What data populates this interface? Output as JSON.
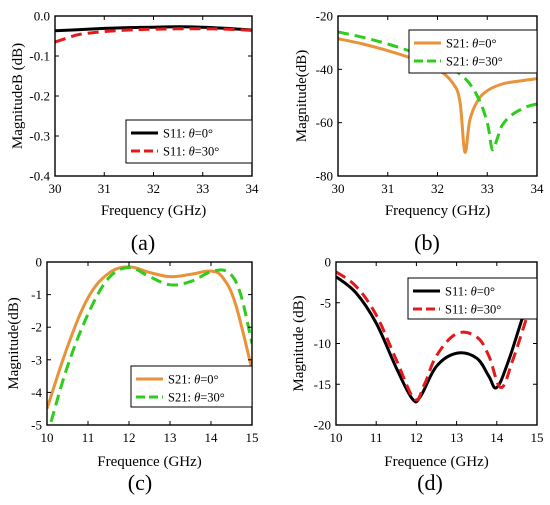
{
  "colors": {
    "black": "#000000",
    "red": "#e31a1c",
    "orange": "#e8923a",
    "green": "#2ecc1b"
  },
  "chart_data": [
    {
      "panel": "(a)",
      "type": "line",
      "xlabel": "Frequency (GHz)",
      "ylabel": "MagnitudeB (dB)",
      "xlim": [
        30,
        34
      ],
      "ylim": [
        -0.4,
        0.0
      ],
      "xticks": [
        "30",
        "31",
        "32",
        "33",
        "34"
      ],
      "yticks": [
        "0.0",
        "-0.1",
        "-0.2",
        "-0.3",
        "-0.4"
      ],
      "legend_position": "bottom-right",
      "series": [
        {
          "name_parts": [
            "S11: ",
            "θ",
            "=0°"
          ],
          "color": "black",
          "dash": "solid",
          "x": [
            30,
            30.5,
            31,
            31.5,
            32,
            32.5,
            33,
            33.5,
            34
          ],
          "y": [
            -0.037,
            -0.034,
            -0.031,
            -0.029,
            -0.028,
            -0.027,
            -0.028,
            -0.031,
            -0.035
          ]
        },
        {
          "name_parts": [
            "S11: ",
            "θ",
            "=30°"
          ],
          "color": "red",
          "dash": "dashed",
          "x": [
            30,
            30.25,
            30.5,
            31,
            31.5,
            32,
            32.5,
            33,
            33.5,
            34
          ],
          "y": [
            -0.065,
            -0.055,
            -0.046,
            -0.039,
            -0.035,
            -0.033,
            -0.032,
            -0.032,
            -0.033,
            -0.036
          ]
        }
      ]
    },
    {
      "panel": "(b)",
      "type": "line",
      "xlabel": "Frequency (GHz)",
      "ylabel": "Magnitude(dB)",
      "xlim": [
        30,
        34
      ],
      "ylim": [
        -80,
        -20
      ],
      "xticks": [
        "30",
        "31",
        "32",
        "33",
        "34"
      ],
      "yticks": [
        "-20",
        "-40",
        "-60",
        "-80"
      ],
      "legend_position": "top-right",
      "series": [
        {
          "name_parts": [
            "S21: ",
            "θ",
            "=0°"
          ],
          "color": "orange",
          "dash": "solid",
          "x": [
            30,
            30.5,
            31,
            31.5,
            32,
            32.3,
            32.45,
            32.55,
            32.65,
            32.8,
            33,
            33.3,
            33.6,
            34
          ],
          "y": [
            -28.5,
            -30.5,
            -33,
            -36,
            -40,
            -45,
            -52,
            -71,
            -59,
            -52,
            -48,
            -45.5,
            -44.5,
            -43.5
          ]
        },
        {
          "name_parts": [
            "S21: ",
            "θ",
            "=30°"
          ],
          "color": "green",
          "dash": "dashed",
          "x": [
            30,
            30.5,
            31,
            31.5,
            32,
            32.5,
            32.8,
            33,
            33.1,
            33.2,
            33.3,
            33.5,
            33.8,
            34
          ],
          "y": [
            -26,
            -28,
            -30.5,
            -33.5,
            -37,
            -42.5,
            -50,
            -60,
            -70,
            -66,
            -61,
            -57,
            -54,
            -53
          ]
        }
      ]
    },
    {
      "panel": "(c)",
      "type": "line",
      "xlabel": "Frequence (GHz)",
      "ylabel": "Magnitude(dB)",
      "xlim": [
        10,
        15
      ],
      "ylim": [
        -5,
        0
      ],
      "xticks": [
        "10",
        "11",
        "12",
        "13",
        "14",
        "15"
      ],
      "yticks": [
        "0",
        "-1",
        "-2",
        "-3",
        "-4",
        "-5"
      ],
      "legend_position": "bottom-right",
      "series": [
        {
          "name_parts": [
            "S21: ",
            "θ",
            "=0°"
          ],
          "color": "orange",
          "dash": "solid",
          "x": [
            10,
            10.5,
            11,
            11.5,
            12,
            12.5,
            13,
            13.5,
            14,
            14.3,
            14.6,
            15
          ],
          "y": [
            -4.5,
            -2.6,
            -1.1,
            -0.35,
            -0.15,
            -0.32,
            -0.45,
            -0.38,
            -0.28,
            -0.5,
            -1.3,
            -3.3
          ]
        },
        {
          "name_parts": [
            "S21: ",
            "θ",
            "=30°"
          ],
          "color": "green",
          "dash": "dashed",
          "x": [
            10.1,
            10.5,
            11,
            11.5,
            12,
            12.5,
            13,
            13.5,
            14,
            14.4,
            14.7,
            15
          ],
          "y": [
            -4.9,
            -3.2,
            -1.6,
            -0.5,
            -0.17,
            -0.45,
            -0.7,
            -0.6,
            -0.3,
            -0.3,
            -0.9,
            -2.5
          ]
        }
      ]
    },
    {
      "panel": "(d)",
      "type": "line",
      "xlabel": "Frequence (GHz)",
      "ylabel": "Magnitude (dB)",
      "xlim": [
        10,
        15
      ],
      "ylim": [
        -20,
        0
      ],
      "xticks": [
        "10",
        "11",
        "12",
        "13",
        "14",
        "15"
      ],
      "yticks": [
        "0",
        "-5",
        "-10",
        "-15",
        "-20"
      ],
      "legend_position": "top-right",
      "series": [
        {
          "name_parts": [
            "S11: ",
            "θ",
            "=0°"
          ],
          "color": "black",
          "dash": "solid",
          "x": [
            10,
            10.5,
            11,
            11.5,
            11.9,
            12.1,
            12.5,
            13,
            13.5,
            13.8,
            14,
            14.3,
            14.7,
            15
          ],
          "y": [
            -1.8,
            -3.8,
            -7.5,
            -13,
            -16.8,
            -16.5,
            -12.8,
            -11.2,
            -11.8,
            -14,
            -15.4,
            -12,
            -6,
            -3
          ]
        },
        {
          "name_parts": [
            "S11: ",
            "θ",
            "=30°"
          ],
          "color": "red",
          "dash": "dashed",
          "x": [
            10,
            10.5,
            11,
            11.5,
            11.95,
            12.2,
            12.5,
            13,
            13.5,
            13.8,
            14.1,
            14.4,
            14.8,
            15
          ],
          "y": [
            -1.2,
            -3.0,
            -6.5,
            -12,
            -16.8,
            -15,
            -11.5,
            -8.8,
            -9.2,
            -11.5,
            -15.4,
            -12,
            -6,
            -3.5
          ]
        }
      ]
    }
  ]
}
